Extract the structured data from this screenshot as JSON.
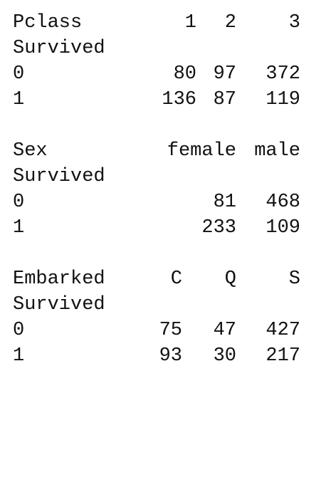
{
  "tables": {
    "pclass": {
      "header_label": "Pclass",
      "index_label": "Survived",
      "columns": [
        "1",
        "2",
        "3"
      ],
      "rows": [
        {
          "index": "0",
          "values": [
            "80",
            "97",
            "372"
          ]
        },
        {
          "index": "1",
          "values": [
            "136",
            "87",
            "119"
          ]
        }
      ]
    },
    "sex": {
      "header_label": "Sex",
      "index_label": "Survived",
      "columns": [
        "female",
        "male"
      ],
      "rows": [
        {
          "index": "0",
          "values": [
            "81",
            "468"
          ]
        },
        {
          "index": "1",
          "values": [
            "233",
            "109"
          ]
        }
      ]
    },
    "embarked": {
      "header_label": "Embarked",
      "index_label": "Survived",
      "columns": [
        "C",
        "Q",
        "S"
      ],
      "rows": [
        {
          "index": "0",
          "values": [
            "75",
            "47",
            "427"
          ]
        },
        {
          "index": "1",
          "values": [
            "93",
            "30",
            "217"
          ]
        }
      ]
    }
  }
}
